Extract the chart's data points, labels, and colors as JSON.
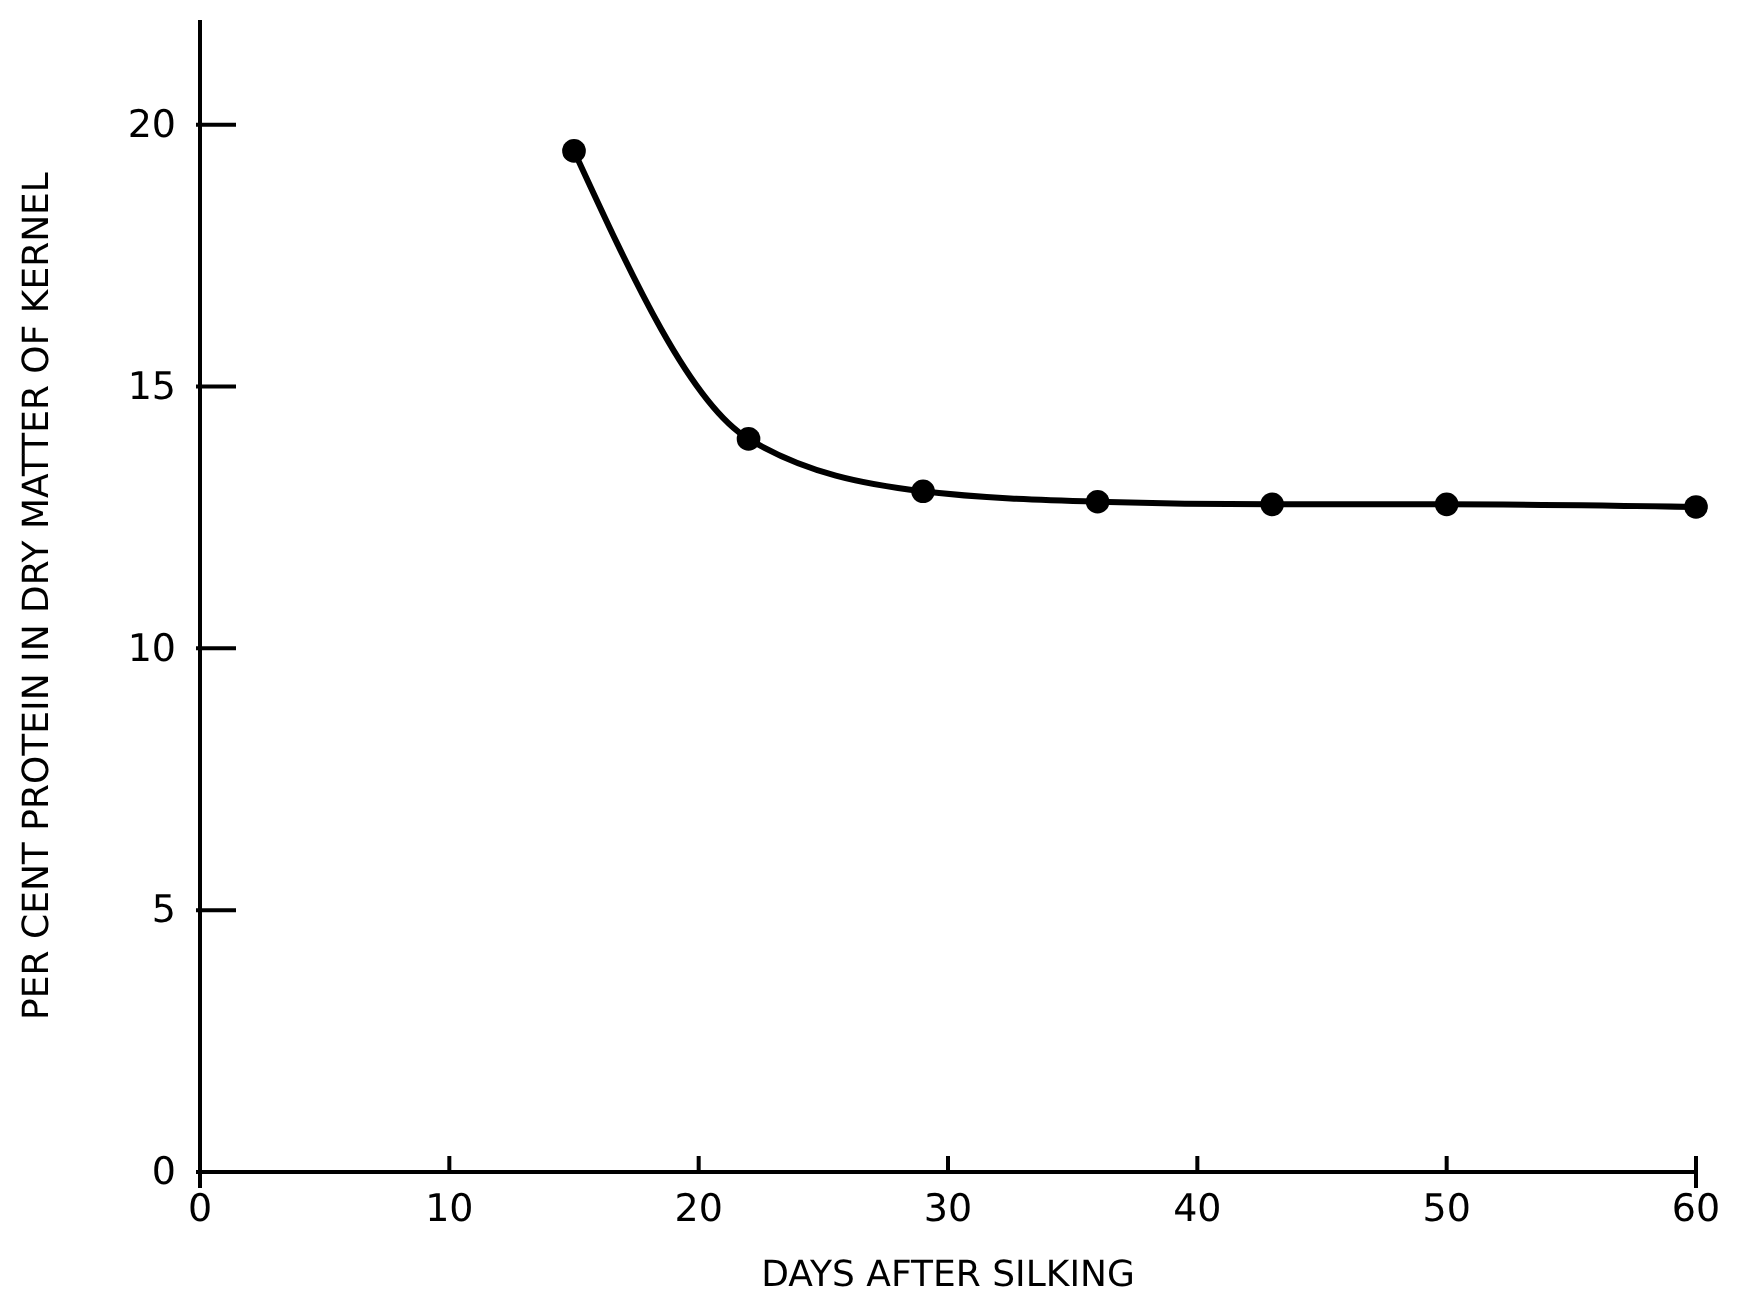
{
  "chart_data": {
    "type": "line",
    "xlabel": "DAYS AFTER SILKING",
    "ylabel": "PER CENT PROTEIN IN DRY MATTER OF KERNEL",
    "x": [
      15,
      22,
      29,
      36,
      43,
      50,
      60
    ],
    "series": [
      {
        "color": "#000000",
        "values": [
          19.5,
          14.0,
          13.0,
          12.8,
          12.75,
          12.75,
          12.7
        ]
      }
    ],
    "xlim": [
      0,
      60
    ],
    "xticks": [
      0,
      10,
      20,
      30,
      40,
      50,
      60
    ],
    "ylim": [
      0,
      22
    ],
    "yticks": [
      0,
      5,
      10,
      15,
      20
    ],
    "marker": "circle",
    "line_style": "solid"
  }
}
